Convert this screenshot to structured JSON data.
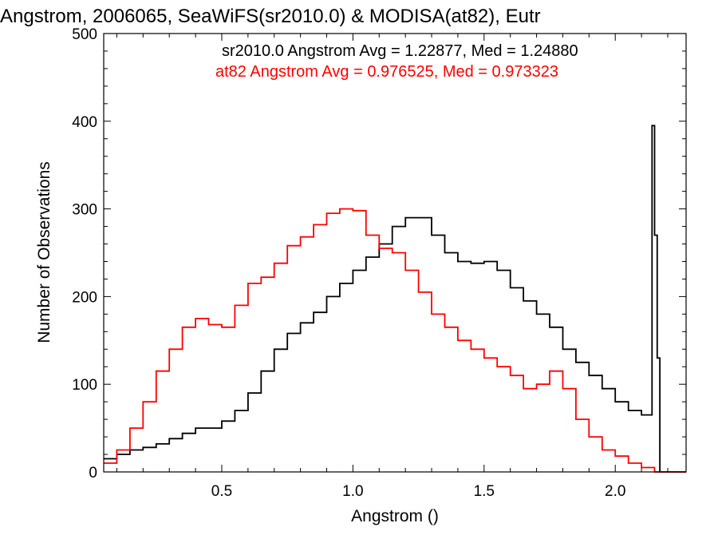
{
  "chart_data": {
    "type": "line",
    "title": "Angstrom, 2006065, SeaWiFS(sr2010.0) & MODISA(at82), Eutr",
    "xlabel": "Angstrom ()",
    "ylabel": "Number of Observations",
    "xlim": [
      0.05,
      2.27
    ],
    "ylim": [
      0,
      500
    ],
    "xticks": [
      "0.5",
      "1.0",
      "1.5",
      "2.0"
    ],
    "yticks": [
      "0",
      "100",
      "200",
      "300",
      "400",
      "500"
    ],
    "grid": false,
    "annotations": [
      {
        "text": "sr2010.0 Angstrom Avg = 1.22877, Med = 1.24880",
        "color": "#000000"
      },
      {
        "text": "at82 Angstrom Avg = 0.976525, Med = 0.973323",
        "color": "#ff0000"
      }
    ],
    "series": [
      {
        "color": "#000000",
        "style": "step",
        "x": [
          0.05,
          0.1,
          0.15,
          0.2,
          0.25,
          0.3,
          0.35,
          0.4,
          0.45,
          0.5,
          0.55,
          0.6,
          0.65,
          0.7,
          0.75,
          0.8,
          0.85,
          0.9,
          0.95,
          1.0,
          1.05,
          1.1,
          1.15,
          1.2,
          1.25,
          1.3,
          1.35,
          1.4,
          1.45,
          1.5,
          1.55,
          1.6,
          1.65,
          1.7,
          1.75,
          1.8,
          1.85,
          1.9,
          1.95,
          2.0,
          2.05,
          2.1,
          2.13,
          2.14,
          2.15,
          2.16,
          2.17,
          2.27
        ],
        "y": [
          15,
          20,
          25,
          28,
          32,
          38,
          44,
          50,
          50,
          58,
          70,
          90,
          115,
          140,
          158,
          170,
          182,
          200,
          215,
          230,
          245,
          260,
          280,
          290,
          290,
          270,
          250,
          240,
          238,
          240,
          230,
          210,
          195,
          180,
          165,
          140,
          125,
          110,
          95,
          80,
          70,
          65,
          65,
          395,
          270,
          130,
          0,
          0
        ]
      },
      {
        "color": "#ff0000",
        "style": "step",
        "x": [
          0.05,
          0.1,
          0.15,
          0.2,
          0.25,
          0.3,
          0.35,
          0.4,
          0.45,
          0.5,
          0.55,
          0.6,
          0.65,
          0.7,
          0.75,
          0.8,
          0.85,
          0.9,
          0.95,
          1.0,
          1.05,
          1.1,
          1.15,
          1.2,
          1.25,
          1.3,
          1.35,
          1.4,
          1.45,
          1.5,
          1.55,
          1.6,
          1.65,
          1.7,
          1.75,
          1.8,
          1.85,
          1.9,
          1.95,
          2.0,
          2.05,
          2.1,
          2.15,
          2.2,
          2.27
        ],
        "y": [
          10,
          25,
          50,
          80,
          115,
          140,
          165,
          175,
          168,
          165,
          190,
          215,
          222,
          238,
          258,
          268,
          282,
          295,
          300,
          298,
          270,
          255,
          250,
          230,
          205,
          180,
          165,
          150,
          140,
          130,
          120,
          110,
          95,
          100,
          115,
          95,
          60,
          40,
          25,
          18,
          10,
          5,
          0,
          0,
          0
        ]
      }
    ]
  }
}
